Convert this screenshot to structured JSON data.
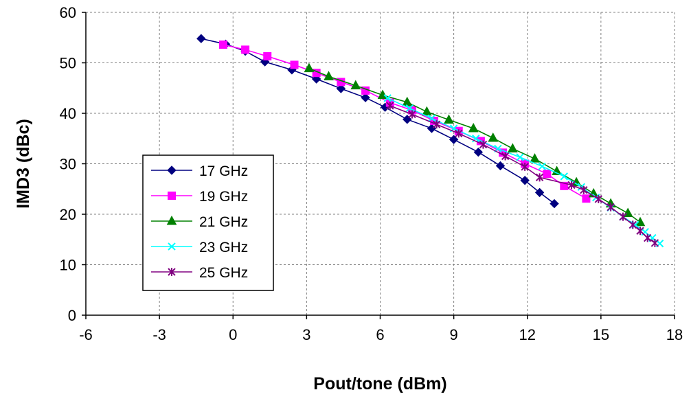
{
  "chart_data": {
    "type": "line",
    "title": "",
    "xlabel": "Pout/tone (dBm)",
    "ylabel": "IMD3 (dBc)",
    "xlim": [
      -6,
      18
    ],
    "ylim": [
      0,
      60
    ],
    "xticks": [
      -6,
      -3,
      0,
      3,
      6,
      9,
      12,
      15,
      18
    ],
    "yticks": [
      0,
      10,
      20,
      30,
      40,
      50,
      60
    ],
    "grid": true,
    "legend_position": "left-center",
    "series": [
      {
        "name": "17 GHz",
        "color": "#000080",
        "marker": "diamond",
        "x": [
          -1.3,
          -0.3,
          0.5,
          1.3,
          2.4,
          3.4,
          4.4,
          5.4,
          6.2,
          7.1,
          8.1,
          9.0,
          10.0,
          10.9,
          11.9,
          12.5,
          13.1
        ],
        "y": [
          54.8,
          53.7,
          52.3,
          50.2,
          48.6,
          46.8,
          44.9,
          43.1,
          41.2,
          38.8,
          37.0,
          34.8,
          32.3,
          29.6,
          26.7,
          24.3,
          22.1
        ]
      },
      {
        "name": "19 GHz",
        "color": "#FF00FF",
        "marker": "square",
        "x": [
          -0.4,
          0.5,
          1.4,
          2.5,
          3.4,
          4.4,
          5.4,
          6.4,
          7.3,
          8.2,
          9.2,
          10.1,
          11.0,
          11.9,
          12.8,
          13.5,
          14.4
        ],
        "y": [
          53.6,
          52.6,
          51.3,
          49.6,
          48.0,
          46.2,
          44.5,
          42.1,
          40.6,
          38.5,
          36.5,
          34.5,
          32.2,
          30.0,
          28.0,
          25.6,
          23.1
        ]
      },
      {
        "name": "21 GHz",
        "color": "#008000",
        "marker": "triangle",
        "x": [
          3.1,
          3.9,
          5.0,
          6.1,
          7.1,
          7.9,
          8.8,
          9.8,
          10.6,
          11.4,
          12.3,
          13.2,
          14.0,
          14.7,
          15.4,
          16.1,
          16.6
        ],
        "y": [
          48.9,
          47.3,
          45.5,
          43.6,
          42.2,
          40.3,
          38.7,
          37.0,
          35.1,
          33.0,
          31.0,
          28.5,
          26.3,
          24.1,
          22.1,
          20.2,
          18.4
        ]
      },
      {
        "name": "23 GHz",
        "color": "#00FFFF",
        "marker": "x",
        "x": [
          6.3,
          7.2,
          8.1,
          9.0,
          9.9,
          10.8,
          11.7,
          12.6,
          13.5,
          14.2,
          14.8,
          15.4,
          15.9,
          16.4,
          16.8,
          17.1,
          17.4
        ],
        "y": [
          43.0,
          41.0,
          39.0,
          37.0,
          35.0,
          33.0,
          31.3,
          29.5,
          27.5,
          25.4,
          23.3,
          21.3,
          19.5,
          17.9,
          16.5,
          15.3,
          14.2
        ]
      },
      {
        "name": "25 GHz",
        "color": "#800080",
        "marker": "star",
        "x": [
          6.4,
          7.3,
          8.3,
          9.2,
          10.2,
          11.1,
          11.9,
          12.5,
          13.8,
          14.3,
          14.9,
          15.4,
          15.9,
          16.3,
          16.6,
          16.9,
          17.2
        ],
        "y": [
          41.5,
          39.8,
          37.8,
          36.0,
          33.8,
          31.5,
          29.4,
          27.3,
          25.8,
          24.8,
          23.0,
          21.4,
          19.5,
          17.9,
          16.7,
          15.3,
          14.3
        ]
      }
    ]
  }
}
